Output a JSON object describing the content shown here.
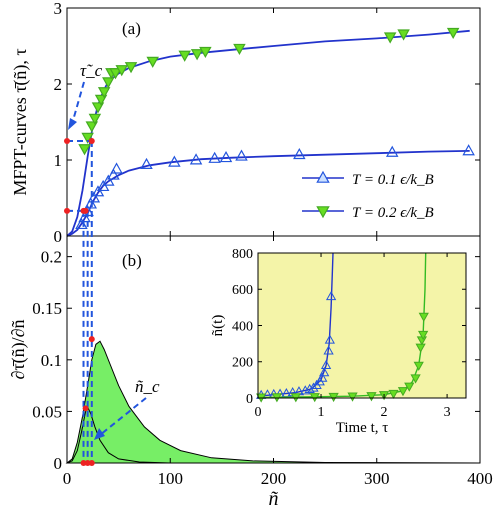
{
  "chart_data": [
    {
      "panel_label": "(a)",
      "type": "line",
      "ylabel": "MFPT-curves τ̄(ñ), τ",
      "xlim": [
        0,
        400
      ],
      "ylim": [
        0,
        3
      ],
      "xticks": [
        "0",
        "100",
        "200",
        "300",
        "400"
      ],
      "yticks": [
        "0",
        "1",
        "2",
        "3"
      ],
      "legend_position": "bottom-right",
      "colors": {
        "blue": "#2233cc",
        "blue_marker": "#2255dd",
        "green_line": "#2233cc",
        "green_marker": "#66dd22",
        "red": "#ee2222"
      },
      "series": [
        {
          "name": "T = 0.1 ϵ/k_B",
          "marker": "triangle-up",
          "color": "blue",
          "curve": [
            [
              0,
              0
            ],
            [
              5,
              0.03
            ],
            [
              10,
              0.08
            ],
            [
              15,
              0.18
            ],
            [
              20,
              0.3
            ],
            [
              25,
              0.45
            ],
            [
              30,
              0.57
            ],
            [
              35,
              0.66
            ],
            [
              40,
              0.72
            ],
            [
              50,
              0.8
            ],
            [
              60,
              0.86
            ],
            [
              80,
              0.93
            ],
            [
              100,
              0.97
            ],
            [
              130,
              1.01
            ],
            [
              160,
              1.03
            ],
            [
              200,
              1.05
            ],
            [
              250,
              1.07
            ],
            [
              300,
              1.09
            ],
            [
              350,
              1.11
            ],
            [
              390,
              1.12
            ]
          ],
          "points": [
            [
              14,
              0.15
            ],
            [
              17,
              0.24
            ],
            [
              20,
              0.32
            ],
            [
              23,
              0.42
            ],
            [
              26,
              0.5
            ],
            [
              30,
              0.58
            ],
            [
              35,
              0.65
            ],
            [
              40,
              0.72
            ],
            [
              45,
              0.8
            ],
            [
              48,
              0.88
            ],
            [
              77,
              0.94
            ],
            [
              104,
              0.97
            ],
            [
              125,
              1.0
            ],
            [
              143,
              1.02
            ],
            [
              154,
              1.03
            ],
            [
              169,
              1.05
            ],
            [
              225,
              1.07
            ],
            [
              315,
              1.1
            ],
            [
              389,
              1.12
            ]
          ]
        },
        {
          "name": "T = 0.2 ϵ/k_B",
          "marker": "triangle-down",
          "color": "green",
          "curve": [
            [
              0,
              0
            ],
            [
              5,
              0.06
            ],
            [
              10,
              0.25
            ],
            [
              15,
              0.6
            ],
            [
              20,
              1.05
            ],
            [
              25,
              1.45
            ],
            [
              30,
              1.72
            ],
            [
              35,
              1.9
            ],
            [
              40,
              2.03
            ],
            [
              50,
              2.14
            ],
            [
              60,
              2.21
            ],
            [
              80,
              2.3
            ],
            [
              100,
              2.36
            ],
            [
              130,
              2.41
            ],
            [
              160,
              2.45
            ],
            [
              200,
              2.5
            ],
            [
              250,
              2.56
            ],
            [
              300,
              2.6
            ],
            [
              350,
              2.65
            ],
            [
              390,
              2.7
            ]
          ],
          "points": [
            [
              17,
              1.15
            ],
            [
              20,
              1.3
            ],
            [
              24,
              1.45
            ],
            [
              27,
              1.55
            ],
            [
              30,
              1.7
            ],
            [
              33,
              1.8
            ],
            [
              36,
              1.9
            ],
            [
              40,
              2.03
            ],
            [
              43,
              2.15
            ],
            [
              47,
              2.15
            ],
            [
              53,
              2.19
            ],
            [
              62,
              2.23
            ],
            [
              83,
              2.3
            ],
            [
              114,
              2.38
            ],
            [
              126,
              2.4
            ],
            [
              134,
              2.43
            ],
            [
              167,
              2.47
            ],
            [
              313,
              2.62
            ],
            [
              326,
              2.66
            ],
            [
              374,
              2.68
            ]
          ]
        }
      ],
      "reference_points": [
        [
          0,
          0.33
        ],
        [
          0,
          1.25
        ],
        [
          16,
          0.33
        ],
        [
          18,
          0.33
        ],
        [
          24,
          1.25
        ]
      ],
      "annotation": "τ̃_c"
    },
    {
      "panel_label": "(b)",
      "type": "area",
      "ylabel": "∂τ̄(ñ)/∂ñ",
      "xlabel": "ñ",
      "xlim": [
        0,
        400
      ],
      "ylim": [
        0,
        0.22
      ],
      "xticks": [
        "0",
        "100",
        "200",
        "300",
        "400"
      ],
      "yticks": [
        "0",
        "0.05",
        "0.1",
        "0.15",
        "0.2"
      ],
      "series": [
        {
          "fill": "#77ee66",
          "curve": [
            [
              0,
              0
            ],
            [
              5,
              0.004
            ],
            [
              10,
              0.02
            ],
            [
              15,
              0.045
            ],
            [
              20,
              0.075
            ],
            [
              24,
              0.1
            ],
            [
              28,
              0.115
            ],
            [
              32,
              0.118
            ],
            [
              36,
              0.11
            ],
            [
              42,
              0.095
            ],
            [
              50,
              0.075
            ],
            [
              60,
              0.055
            ],
            [
              75,
              0.035
            ],
            [
              90,
              0.022
            ],
            [
              110,
              0.012
            ],
            [
              140,
              0.005
            ],
            [
              180,
              0.002
            ],
            [
              250,
              0.0005
            ],
            [
              400,
              0
            ]
          ]
        },
        {
          "fill": "#77ee66",
          "curve": [
            [
              0,
              0
            ],
            [
              5,
              0.002
            ],
            [
              10,
              0.012
            ],
            [
              14,
              0.03
            ],
            [
              18,
              0.05
            ],
            [
              20,
              0.054
            ],
            [
              23,
              0.048
            ],
            [
              27,
              0.035
            ],
            [
              32,
              0.022
            ],
            [
              40,
              0.01
            ],
            [
              50,
              0.004
            ],
            [
              70,
              0.001
            ],
            [
              100,
              0
            ],
            [
              400,
              0
            ]
          ]
        }
      ],
      "reference_points": [
        [
          16,
          0.0
        ],
        [
          20,
          0.0
        ],
        [
          24,
          0.0
        ],
        [
          18,
          0.053
        ],
        [
          24,
          0.12
        ]
      ],
      "annotation": "ñ_c"
    },
    {
      "panel_label": "inset",
      "type": "scatter",
      "xlabel": "Time t, τ",
      "ylabel": "ñ(t)",
      "xlim": [
        0,
        3.3
      ],
      "ylim": [
        0,
        800
      ],
      "xticks": [
        "0",
        "1",
        "2",
        "3"
      ],
      "yticks": [
        "0",
        "200",
        "400",
        "600",
        "800"
      ],
      "background": "#f4f4a8",
      "series": [
        {
          "name": "T = 0.1 ϵ/k_B",
          "marker": "triangle-up",
          "color": "blue",
          "points": [
            [
              0.05,
              15
            ],
            [
              0.15,
              18
            ],
            [
              0.25,
              20
            ],
            [
              0.35,
              22
            ],
            [
              0.45,
              25
            ],
            [
              0.55,
              30
            ],
            [
              0.65,
              35
            ],
            [
              0.75,
              40
            ],
            [
              0.82,
              48
            ],
            [
              0.88,
              55
            ],
            [
              0.93,
              70
            ],
            [
              0.98,
              90
            ],
            [
              1.02,
              110
            ],
            [
              1.05,
              140
            ],
            [
              1.08,
              180
            ],
            [
              1.12,
              260
            ],
            [
              1.14,
              320
            ],
            [
              1.16,
              560
            ]
          ],
          "curve": [
            [
              0,
              10
            ],
            [
              0.3,
              20
            ],
            [
              0.6,
              30
            ],
            [
              0.85,
              50
            ],
            [
              1.0,
              100
            ],
            [
              1.08,
              180
            ],
            [
              1.13,
              300
            ],
            [
              1.16,
              500
            ],
            [
              1.18,
              700
            ],
            [
              1.19,
              800
            ]
          ]
        },
        {
          "name": "T = 0.2 ϵ/k_B",
          "marker": "triangle-down",
          "color": "green",
          "points": [
            [
              0.05,
              5
            ],
            [
              0.3,
              6
            ],
            [
              0.6,
              6
            ],
            [
              0.9,
              7
            ],
            [
              1.2,
              8
            ],
            [
              1.5,
              10
            ],
            [
              1.8,
              12
            ],
            [
              2.0,
              18
            ],
            [
              2.15,
              25
            ],
            [
              2.3,
              40
            ],
            [
              2.4,
              65
            ],
            [
              2.5,
              110
            ],
            [
              2.55,
              180
            ],
            [
              2.58,
              280
            ],
            [
              2.6,
              320
            ],
            [
              2.62,
              350
            ],
            [
              2.63,
              450
            ]
          ],
          "curve": [
            [
              0,
              2
            ],
            [
              0.5,
              5
            ],
            [
              1.0,
              7
            ],
            [
              1.5,
              10
            ],
            [
              2.0,
              18
            ],
            [
              2.3,
              40
            ],
            [
              2.45,
              90
            ],
            [
              2.55,
              180
            ],
            [
              2.62,
              350
            ],
            [
              2.65,
              600
            ],
            [
              2.66,
              800
            ]
          ]
        }
      ]
    }
  ]
}
